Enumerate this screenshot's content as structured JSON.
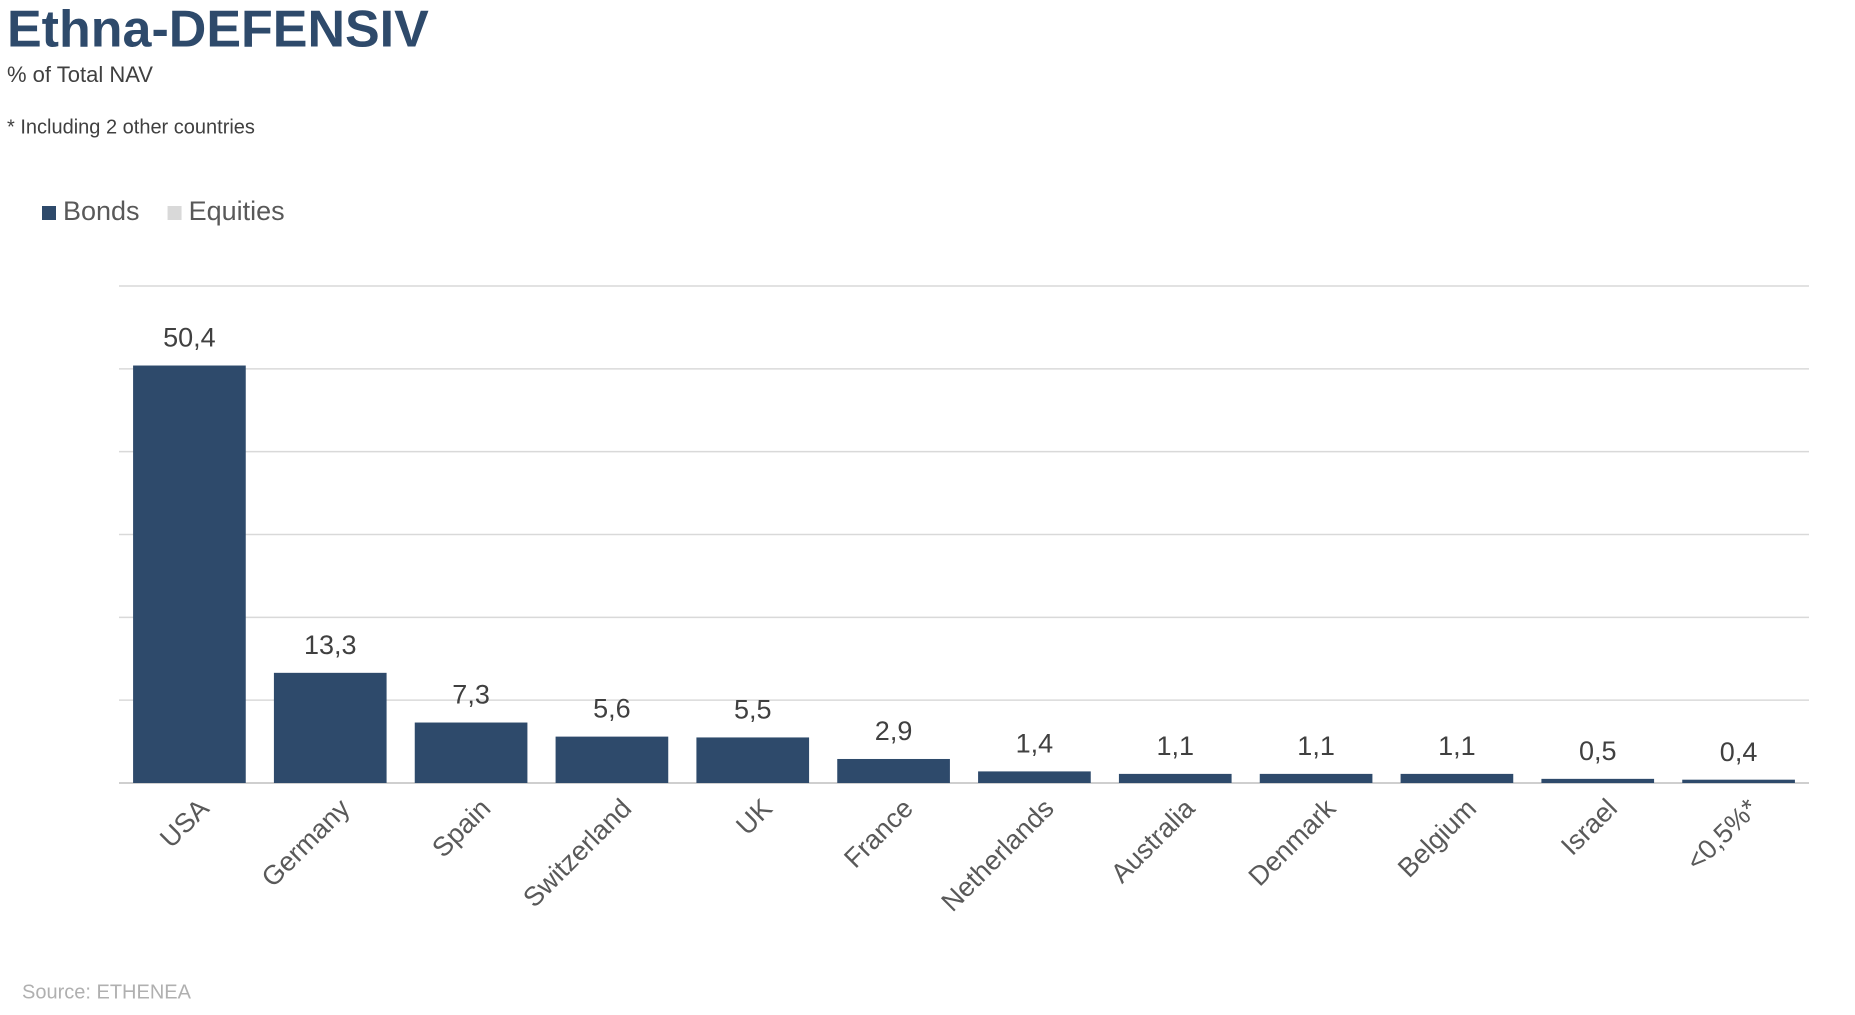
{
  "chart_data": {
    "type": "bar",
    "stacked": true,
    "title": "Ethna-DEFENSIV",
    "subtitle": "% of Total NAV",
    "annotation": "* Including 2 other countries",
    "source": "Source: ETHENEA",
    "categories": [
      "USA",
      "Germany",
      "Spain",
      "Switzerland",
      "UK",
      "France",
      "Netherlands",
      "Australia",
      "Denmark",
      "Belgium",
      "Israel",
      "<0,5%*"
    ],
    "series": [
      {
        "name": "Bonds",
        "color": "#2e4a6b",
        "values": [
          50.4,
          13.3,
          7.3,
          5.6,
          5.5,
          2.9,
          1.4,
          1.1,
          1.1,
          1.1,
          0.5,
          0.4
        ],
        "value_labels": [
          "50,4",
          "13,3",
          "7,3",
          "5,6",
          "5,5",
          "2,9",
          "1,4",
          "1,1",
          "1,1",
          "1,1",
          "0,5",
          "0,4"
        ]
      },
      {
        "name": "Equities",
        "color": "#d9d9d9",
        "values": [
          0,
          0,
          0,
          0,
          0,
          0,
          0,
          0,
          0,
          0,
          0,
          0
        ]
      }
    ],
    "ylim": [
      0,
      60
    ],
    "yticks": [
      0,
      10,
      20,
      30,
      40,
      50,
      60
    ],
    "grid": true
  }
}
